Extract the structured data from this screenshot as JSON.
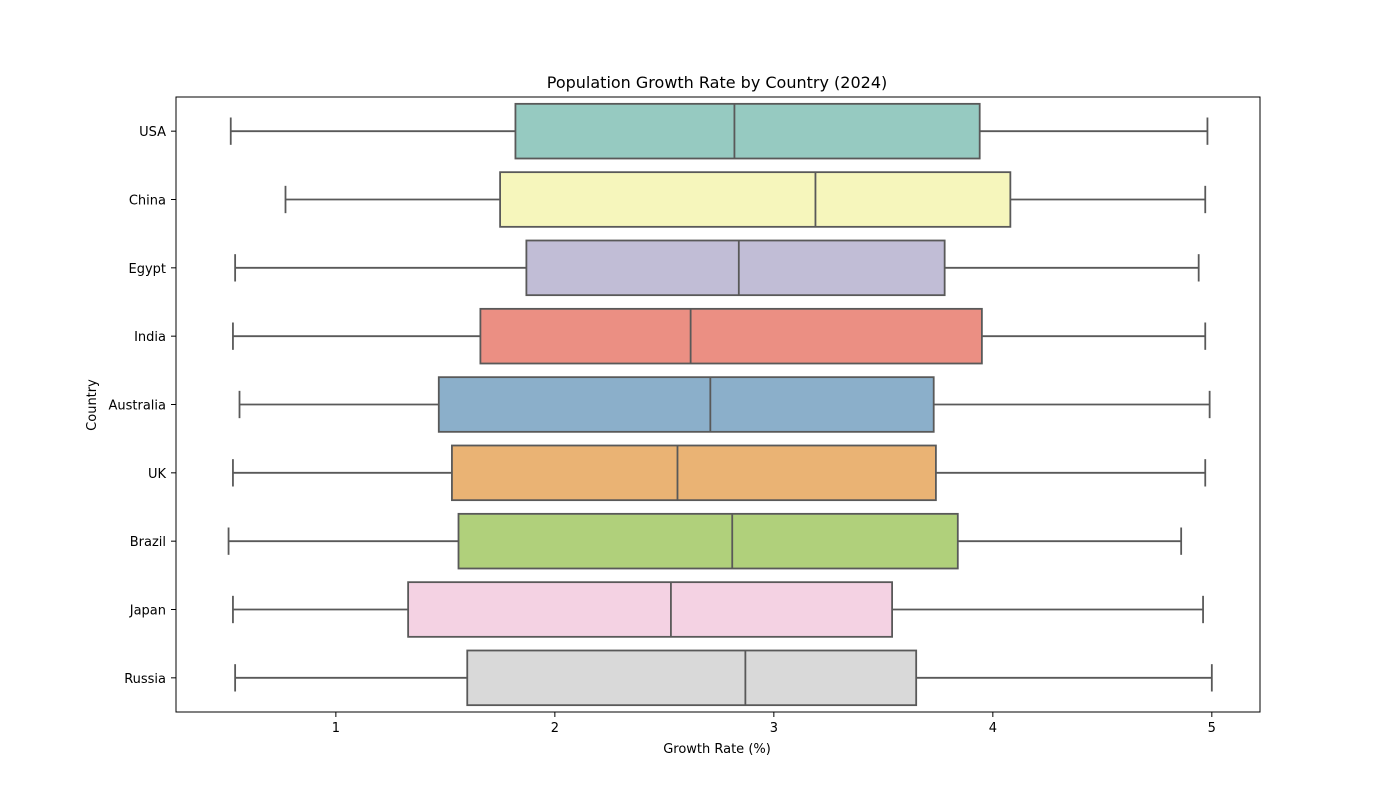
{
  "chart_data": {
    "type": "boxplot",
    "orientation": "horizontal",
    "title": "Population Growth Rate by Country (2024)",
    "xlabel": "Growth Rate (%)",
    "ylabel": "Country",
    "xlim": [
      0.27,
      5.22
    ],
    "xticks": [
      1,
      2,
      3,
      4,
      5
    ],
    "grid": false,
    "legend": "none",
    "line_color": "#595959",
    "series": [
      {
        "category": "USA",
        "min": 0.52,
        "q1": 1.82,
        "median": 2.82,
        "q3": 3.94,
        "max": 4.98,
        "color": "#96cac1"
      },
      {
        "category": "China",
        "min": 0.77,
        "q1": 1.75,
        "median": 3.19,
        "q3": 4.08,
        "max": 4.97,
        "color": "#f6f6bc"
      },
      {
        "category": "Egypt",
        "min": 0.54,
        "q1": 1.87,
        "median": 2.84,
        "q3": 3.78,
        "max": 4.94,
        "color": "#c1bdd6"
      },
      {
        "category": "India",
        "min": 0.53,
        "q1": 1.66,
        "median": 2.62,
        "q3": 3.95,
        "max": 4.97,
        "color": "#eb8f83"
      },
      {
        "category": "Australia",
        "min": 0.56,
        "q1": 1.47,
        "median": 2.71,
        "q3": 3.73,
        "max": 4.99,
        "color": "#8bafca"
      },
      {
        "category": "UK",
        "min": 0.53,
        "q1": 1.53,
        "median": 2.56,
        "q3": 3.74,
        "max": 4.97,
        "color": "#eab374"
      },
      {
        "category": "Brazil",
        "min": 0.51,
        "q1": 1.56,
        "median": 2.81,
        "q3": 3.84,
        "max": 4.86,
        "color": "#b0d07b"
      },
      {
        "category": "Japan",
        "min": 0.53,
        "q1": 1.33,
        "median": 2.53,
        "q3": 3.54,
        "max": 4.96,
        "color": "#f4d2e3"
      },
      {
        "category": "Russia",
        "min": 0.54,
        "q1": 1.6,
        "median": 2.87,
        "q3": 3.65,
        "max": 5.0,
        "color": "#d9d9d9"
      }
    ]
  }
}
